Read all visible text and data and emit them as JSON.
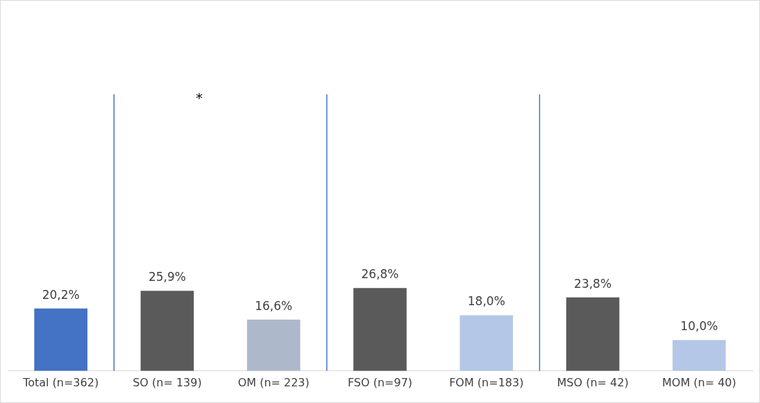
{
  "chart_data": {
    "type": "bar",
    "categories": [
      "Total (n=362)",
      "SO (n= 139)",
      "OM (n= 223)",
      "FSO (n=97)",
      "FOM (n=183)",
      "MSO (n= 42)",
      "MOM (n= 40)"
    ],
    "values": [
      20.2,
      25.9,
      16.6,
      26.8,
      18.0,
      23.8,
      10.0
    ],
    "colors": [
      "#4472c4",
      "#5a5a5a",
      "#adb9ca",
      "#5a5a5a",
      "#b4c7e7",
      "#5a5a5a",
      "#b4c7e7"
    ],
    "value_labels": [
      "20,2%",
      "25,9%",
      "16,6%",
      "26,8%",
      "18,0%",
      "23,8%",
      "10,0%"
    ],
    "annotations": [
      "*"
    ],
    "grid": false,
    "legend": false,
    "tick_labels": "x"
  }
}
